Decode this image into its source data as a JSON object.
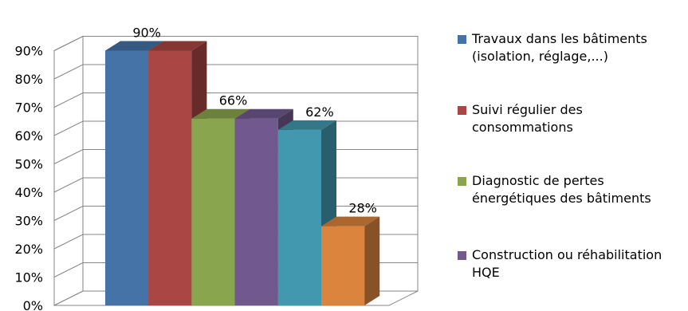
{
  "chart_data": {
    "type": "bar",
    "title": "",
    "xlabel": "",
    "ylabel": "",
    "ylim": [
      0,
      90
    ],
    "yticks": [
      "0%",
      "10%",
      "20%",
      "30%",
      "40%",
      "50%",
      "60%",
      "70%",
      "80%",
      "90%"
    ],
    "grid": true,
    "legend_position": "right",
    "series": [
      {
        "name": "Travaux dans les bâtiments (isolation, réglage,...)",
        "value": 90,
        "color": "#4572A7"
      },
      {
        "name": "Suivi régulier des consommations",
        "value": 90,
        "color": "#AA4643"
      },
      {
        "name": "Diagnostic de pertes énergétiques des bâtiments",
        "value": 66,
        "color": "#89A54E"
      },
      {
        "name": "Construction ou réhabilitation HQE",
        "value": 66,
        "color": "#71588F"
      },
      {
        "name": "",
        "value": 62,
        "color": "#4198AF"
      },
      {
        "name": "",
        "value": 28,
        "color": "#DB843D"
      }
    ],
    "data_labels": [
      {
        "text": "90%",
        "series_index": 0
      },
      {
        "text": "66%",
        "series_index": 2
      },
      {
        "text": "62%",
        "series_index": 4
      },
      {
        "text": "28%",
        "series_index": 5
      }
    ]
  }
}
